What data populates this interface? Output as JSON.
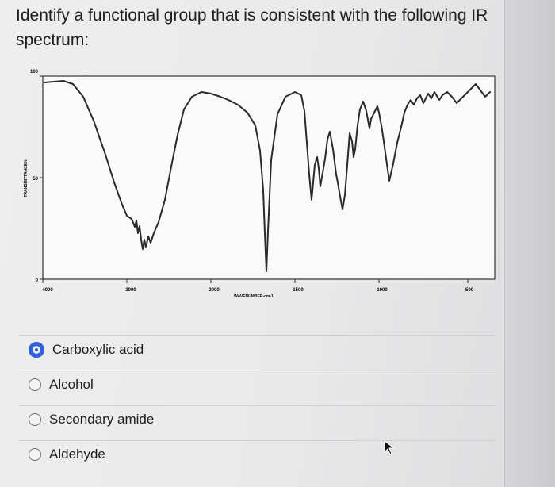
{
  "question": {
    "text": "Identify a functional group that is consistent with the following IR spectrum:"
  },
  "spectrum": {
    "y_ticks": [
      "100",
      "50",
      "0"
    ],
    "y_axis_label": "TRANSMITTANCE%",
    "x_ticks": [
      "4000",
      "3000",
      "2000",
      "1500",
      "1000",
      "500"
    ],
    "x_axis_label": "WAVENUMBER-cm-1"
  },
  "options": [
    {
      "label": "Carboxylic acid",
      "selected": true
    },
    {
      "label": "Alcohol",
      "selected": false
    },
    {
      "label": "Secondary amide",
      "selected": false
    },
    {
      "label": "Aldehyde",
      "selected": false
    }
  ],
  "colors": {
    "accent": "#2f62d8",
    "text": "#1e1e1e",
    "background": "#eeeeee"
  },
  "icons": {
    "cursor": "arrow-cursor-icon"
  }
}
